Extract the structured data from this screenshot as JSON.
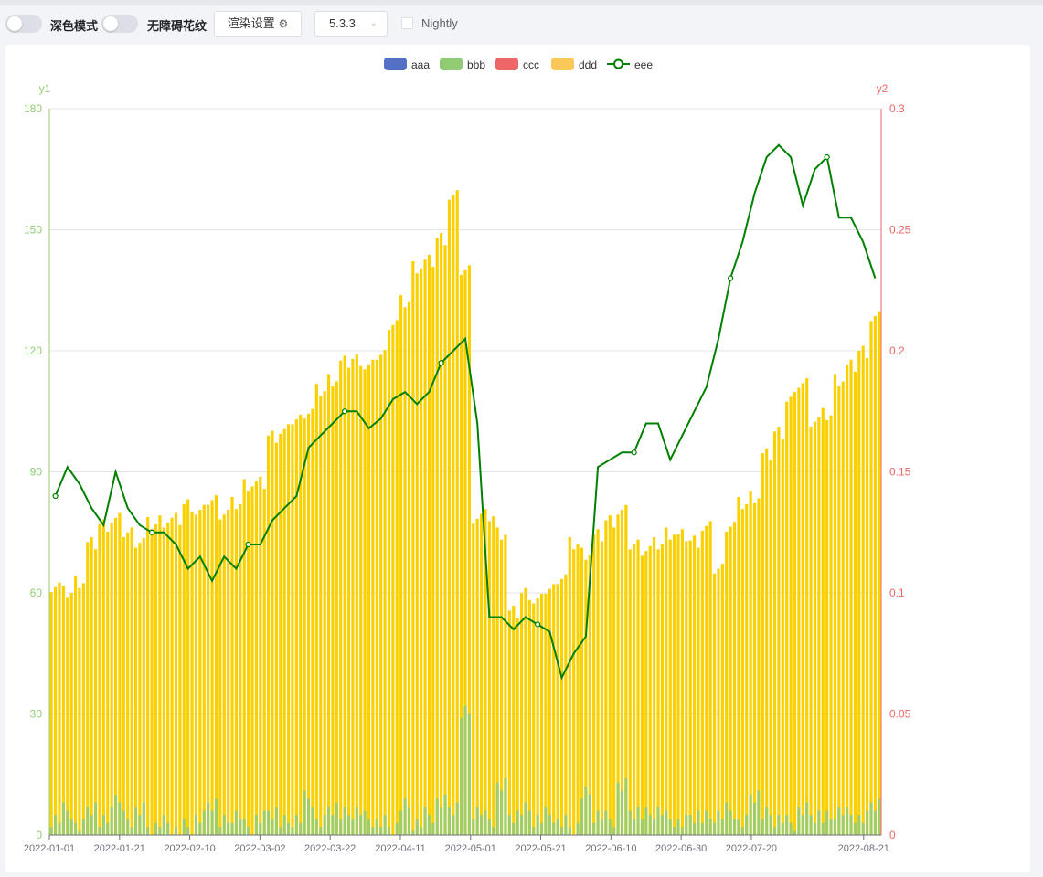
{
  "toolbar": {
    "dark_mode_label": "深色模式",
    "a11y_label": "无障碍花纹",
    "render_settings_label": "渲染设置",
    "render_settings_icon": "gear-icon",
    "version_value": "5.3.3",
    "version_icon": "chevron-down-icon",
    "nightly_label": "Nightly"
  },
  "chart_data": {
    "type": "bar",
    "title": "",
    "legend": {
      "position": "top-center",
      "items": [
        {
          "name": "aaa",
          "color": "#5470c6",
          "kind": "bar"
        },
        {
          "name": "bbb",
          "color": "#91cc75",
          "kind": "bar"
        },
        {
          "name": "ccc",
          "color": "#ee6666",
          "kind": "bar"
        },
        {
          "name": "ddd",
          "color": "#fac858",
          "kind": "bar"
        },
        {
          "name": "eee",
          "color": "#008000",
          "kind": "line"
        }
      ]
    },
    "x_axis": {
      "type": "date",
      "start": "2022-01-01",
      "end": "2022-08-26",
      "tick_labels": [
        "2022-01-01",
        "2022-01-21",
        "2022-02-10",
        "2022-03-02",
        "2022-03-22",
        "2022-04-11",
        "2022-05-01",
        "2022-05-21",
        "2022-06-10",
        "2022-06-30",
        "2022-07-20",
        "2022-08-21"
      ]
    },
    "y_axis_left": {
      "name": "y1",
      "min": 0,
      "max": 180,
      "ticks": [
        0,
        30,
        60,
        90,
        120,
        150,
        180
      ],
      "color": "#91cc75"
    },
    "y_axis_right": {
      "name": "y2",
      "min": 0,
      "max": 0.3,
      "ticks": [
        0,
        0.05,
        0.1,
        0.15,
        0.2,
        0.25,
        0.3
      ],
      "color": "#ee6666"
    },
    "grid": true,
    "series": [
      {
        "name": "ddd",
        "axis": "y1",
        "type": "bar",
        "color": "#fad000",
        "values_weekly": [
          62,
          60,
          63,
          72,
          77,
          78,
          75,
          73,
          77,
          78,
          78,
          82,
          80,
          83,
          80,
          82,
          87,
          87,
          99,
          100,
          103,
          105,
          110,
          113,
          117,
          118,
          116,
          119,
          127,
          132,
          141,
          142,
          148,
          158,
          140,
          79,
          79,
          75,
          55,
          60,
          58,
          61,
          64,
          72,
          70,
          74,
          78,
          80,
          72,
          71,
          72,
          75,
          74,
          73,
          76,
          66,
          77,
          82,
          84,
          94,
          100,
          108,
          112,
          103,
          104,
          113,
          116,
          120,
          128
        ]
      },
      {
        "name": "bbb",
        "axis": "y1",
        "type": "bar",
        "color": "#91cc75",
        "values_weekly": [
          4,
          6,
          2,
          7,
          3,
          9,
          4,
          6,
          2,
          3,
          1,
          2,
          4,
          8,
          3,
          5,
          2,
          4,
          6,
          3,
          4,
          9,
          3,
          7,
          5,
          6,
          4,
          3,
          2,
          7,
          3,
          5,
          8,
          7,
          30,
          6,
          4,
          12,
          5,
          6,
          4,
          5,
          3,
          2,
          10,
          5,
          4,
          12,
          6,
          5,
          6,
          4,
          3,
          5,
          4,
          5,
          6,
          3,
          10,
          5,
          4,
          3,
          6,
          5,
          4,
          6,
          5,
          4,
          8
        ]
      },
      {
        "name": "eee",
        "axis": "y2",
        "type": "line",
        "color": "#008000",
        "values_weekly": [
          0.14,
          0.152,
          0.145,
          0.135,
          0.128,
          0.15,
          0.135,
          0.128,
          0.125,
          0.125,
          0.12,
          0.11,
          0.115,
          0.105,
          0.115,
          0.11,
          0.12,
          0.12,
          0.13,
          0.135,
          0.14,
          0.16,
          0.165,
          0.17,
          0.175,
          0.175,
          0.168,
          0.172,
          0.18,
          0.183,
          0.178,
          0.183,
          0.195,
          0.2,
          0.205,
          0.17,
          0.09,
          0.09,
          0.085,
          0.09,
          0.087,
          0.084,
          0.065,
          0.075,
          0.082,
          0.152,
          0.155,
          0.158,
          0.158,
          0.17,
          0.17,
          0.155,
          0.165,
          0.175,
          0.185,
          0.205,
          0.23,
          0.245,
          0.265,
          0.28,
          0.285,
          0.28,
          0.26,
          0.275,
          0.28,
          0.255,
          0.255,
          0.245,
          0.23
        ]
      }
    ]
  }
}
